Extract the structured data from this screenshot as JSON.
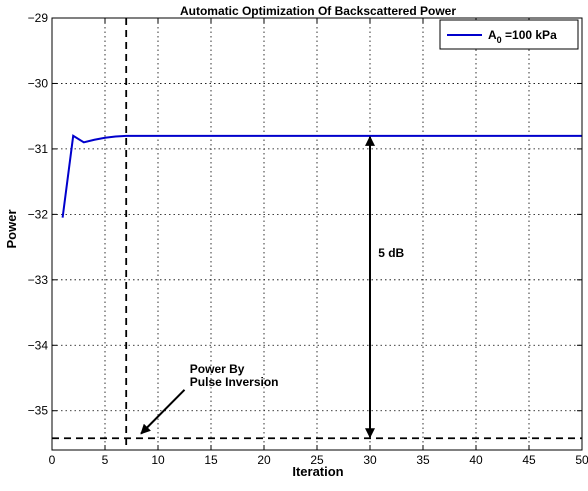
{
  "chart_data": {
    "type": "line",
    "title": "Automatic Optimization Of Backscattered Power",
    "xlabel": "Iteration",
    "ylabel": "Power",
    "xlim": [
      0,
      50
    ],
    "ylim": [
      -35.6,
      -29
    ],
    "xticks": [
      0,
      5,
      10,
      15,
      20,
      25,
      30,
      35,
      40,
      45,
      50
    ],
    "yticks": [
      -35,
      -34,
      -33,
      -32,
      -31,
      -30,
      -29
    ],
    "grid": true,
    "legend_position": "top-right",
    "series": [
      {
        "name_main": "A",
        "name_sub": "0",
        "name_rest": " =100 kPa",
        "color": "#0000cc",
        "x": [
          1,
          2,
          3,
          4,
          5,
          6,
          7,
          8,
          9,
          10,
          15,
          20,
          25,
          30,
          35,
          40,
          45,
          50
        ],
        "y": [
          -32.05,
          -30.8,
          -30.9,
          -30.86,
          -30.83,
          -30.81,
          -30.8,
          -30.8,
          -30.8,
          -30.8,
          -30.8,
          -30.8,
          -30.8,
          -30.8,
          -30.8,
          -30.8,
          -30.8,
          -30.8
        ]
      }
    ],
    "reference_lines": {
      "horizontal_y": -35.42,
      "vertical_x": 7
    },
    "annotations": {
      "dB_label": "5 dB",
      "dB_arrow_x": 30,
      "dB_arrow_from_y": -30.8,
      "dB_arrow_to_y": -35.42,
      "dB_label_x": 32,
      "dB_label_y": -32.65,
      "pulse_label_line1": "Power By",
      "pulse_label_line2": "Pulse Inversion",
      "pulse_label_x": 13,
      "pulse_label_y1": -34.42,
      "pulse_label_y2": -34.62,
      "pulse_arrow_from": [
        12.5,
        -34.62
      ],
      "pulse_arrow_to": [
        8.4,
        -35.35
      ]
    }
  }
}
